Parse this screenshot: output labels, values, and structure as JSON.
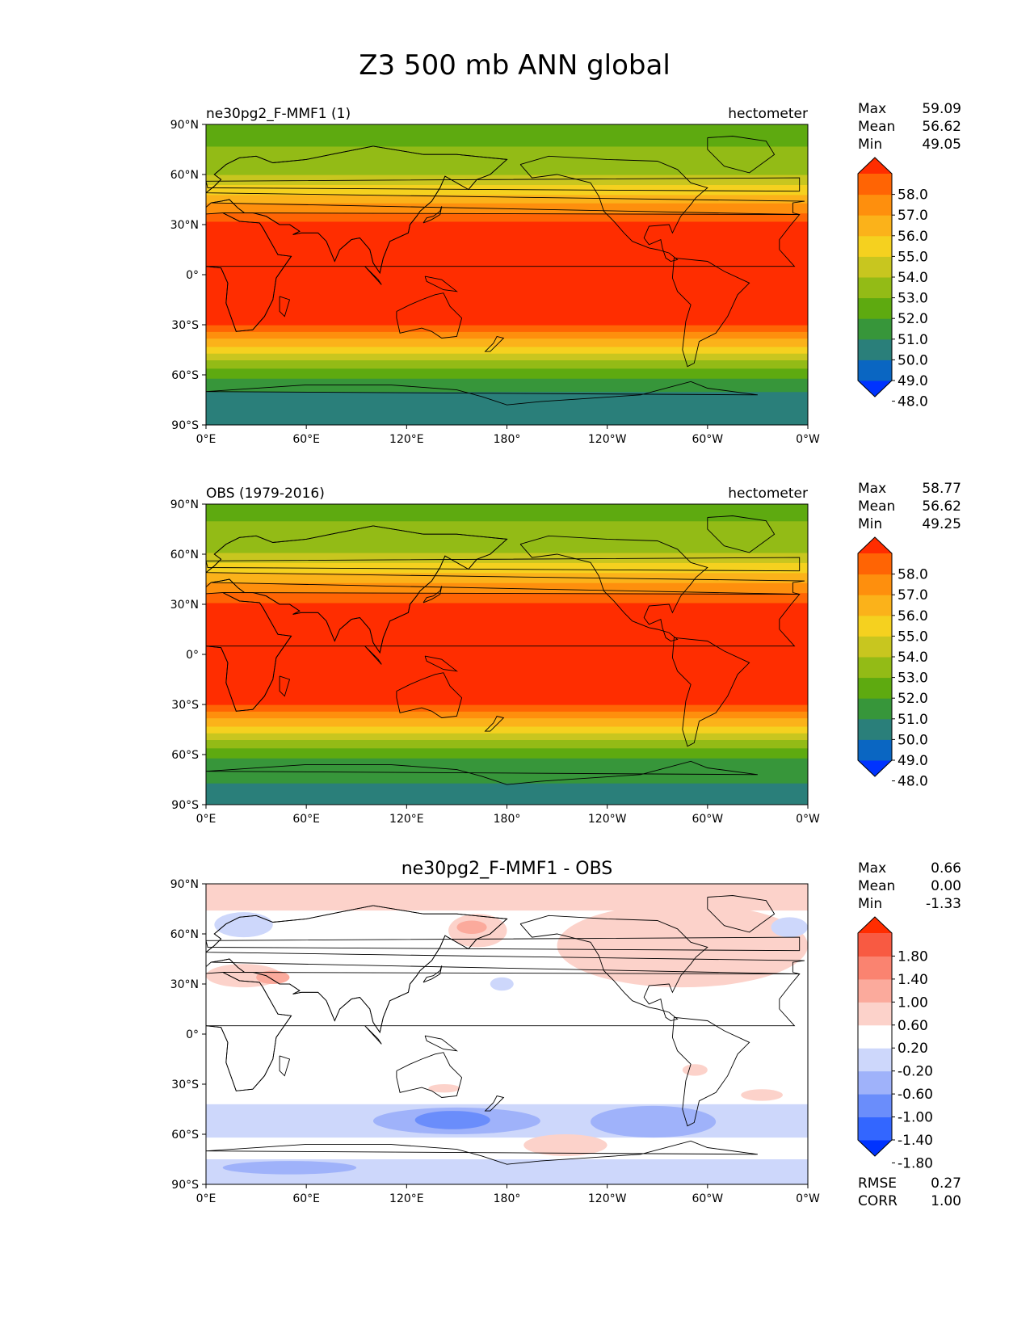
{
  "title": "Z3 500 mb ANN global",
  "lat_ticks": [
    "90°N",
    "60°N",
    "30°N",
    "0°",
    "30°S",
    "60°S",
    "90°S"
  ],
  "lon_ticks": [
    "0°E",
    "60°E",
    "120°E",
    "180°",
    "120°W",
    "60°W",
    "0°W"
  ],
  "stat_labels": {
    "max": "Max",
    "mean": "Mean",
    "min": "Min",
    "rmse": "RMSE",
    "corr": "CORR"
  },
  "colors": {
    "abs_levels": [
      "#0033ff",
      "#0a66c2",
      "#2a7f7a",
      "#37963a",
      "#5eaa10",
      "#93bb16",
      "#c8c61f",
      "#f5d11f",
      "#fbb21a",
      "#fe8f0d",
      "#ff6404",
      "#ff2d00"
    ],
    "diff_levels": [
      "#0033ff",
      "#3366ff",
      "#6a8dfb",
      "#9fb2fa",
      "#cdd7fb",
      "#ffffff",
      "#fcd2ca",
      "#fbaa9c",
      "#fa8370",
      "#f85a42",
      "#ff2d00"
    ]
  },
  "chart_data": [
    {
      "type": "heatmap",
      "title": "ne30pg2_F-MMF1 (1)",
      "units": "hectometer",
      "stats": {
        "max": "59.09",
        "mean": "56.62",
        "min": "49.05"
      },
      "colorbar_ticks": [
        "58.0",
        "57.0",
        "56.0",
        "55.0",
        "54.0",
        "53.0",
        "52.0",
        "51.0",
        "50.0",
        "49.0",
        "48.0"
      ],
      "xlim": [
        0,
        360
      ],
      "ylim": [
        -90,
        90
      ],
      "lat_bands": [
        {
          "lat": [
            -90,
            -70
          ],
          "level": 2
        },
        {
          "lat": [
            -70,
            -62
          ],
          "level": 3
        },
        {
          "lat": [
            -62,
            -56
          ],
          "level": 4
        },
        {
          "lat": [
            -56,
            -51
          ],
          "level": 5
        },
        {
          "lat": [
            -51,
            -47
          ],
          "level": 6
        },
        {
          "lat": [
            -47,
            -43
          ],
          "level": 7
        },
        {
          "lat": [
            -43,
            -38
          ],
          "level": 8
        },
        {
          "lat": [
            -38,
            -34
          ],
          "level": 9
        },
        {
          "lat": [
            -34,
            -30
          ],
          "level": 10
        },
        {
          "lat": [
            -30,
            32
          ],
          "level": 11
        },
        {
          "lat": [
            32,
            37
          ],
          "level": 10
        },
        {
          "lat": [
            37,
            43
          ],
          "level": 9
        },
        {
          "lat": [
            43,
            48
          ],
          "level": 8
        },
        {
          "lat": [
            48,
            54
          ],
          "level": 7
        },
        {
          "lat": [
            54,
            60
          ],
          "level": 6
        },
        {
          "lat": [
            60,
            77
          ],
          "level": 5
        },
        {
          "lat": [
            77,
            90
          ],
          "level": 4
        }
      ]
    },
    {
      "type": "heatmap",
      "title": "OBS (1979-2016)",
      "units": "hectometer",
      "stats": {
        "max": "58.77",
        "mean": "56.62",
        "min": "49.25"
      },
      "colorbar_ticks": [
        "58.0",
        "57.0",
        "56.0",
        "55.0",
        "54.0",
        "53.0",
        "52.0",
        "51.0",
        "50.0",
        "49.0",
        "48.0"
      ],
      "xlim": [
        0,
        360
      ],
      "ylim": [
        -90,
        90
      ],
      "lat_bands": [
        {
          "lat": [
            -90,
            -77
          ],
          "level": 2
        },
        {
          "lat": [
            -77,
            -62
          ],
          "level": 3
        },
        {
          "lat": [
            -62,
            -56
          ],
          "level": 4
        },
        {
          "lat": [
            -56,
            -51
          ],
          "level": 5
        },
        {
          "lat": [
            -51,
            -47
          ],
          "level": 6
        },
        {
          "lat": [
            -47,
            -43
          ],
          "level": 7
        },
        {
          "lat": [
            -43,
            -38
          ],
          "level": 8
        },
        {
          "lat": [
            -38,
            -34
          ],
          "level": 9
        },
        {
          "lat": [
            -34,
            -30
          ],
          "level": 10
        },
        {
          "lat": [
            -30,
            31
          ],
          "level": 11
        },
        {
          "lat": [
            31,
            37
          ],
          "level": 10
        },
        {
          "lat": [
            37,
            43
          ],
          "level": 9
        },
        {
          "lat": [
            43,
            49
          ],
          "level": 8
        },
        {
          "lat": [
            49,
            55
          ],
          "level": 7
        },
        {
          "lat": [
            55,
            61
          ],
          "level": 6
        },
        {
          "lat": [
            61,
            80
          ],
          "level": 5
        },
        {
          "lat": [
            80,
            90
          ],
          "level": 4
        }
      ]
    },
    {
      "type": "heatmap",
      "title": "ne30pg2_F-MMF1 - OBS",
      "units": "",
      "stats": {
        "max": "0.66",
        "mean": "0.00",
        "min": "-1.33"
      },
      "rmse": "0.27",
      "corr": "1.00",
      "colorbar_ticks": [
        "1.80",
        "1.40",
        "1.00",
        "0.60",
        "0.20",
        "-0.20",
        "-0.60",
        "-1.00",
        "-1.40",
        "-1.80"
      ],
      "xlim": [
        0,
        360
      ],
      "ylim": [
        -90,
        90
      ],
      "anomalies": [
        {
          "lon": [
            0,
            360
          ],
          "lat": [
            74,
            90
          ],
          "level": 6
        },
        {
          "lon": [
            145,
            180
          ],
          "lat": [
            52,
            72
          ],
          "level": 6
        },
        {
          "lon": [
            150,
            168
          ],
          "lat": [
            60,
            68
          ],
          "level": 7
        },
        {
          "lon": [
            210,
            360
          ],
          "lat": [
            28,
            78
          ],
          "level": 6
        },
        {
          "lon": [
            250,
            340
          ],
          "lat": [
            40,
            70
          ],
          "level": 6
        },
        {
          "lon": [
            0,
            45
          ],
          "lat": [
            28,
            42
          ],
          "level": 6
        },
        {
          "lon": [
            30,
            50
          ],
          "lat": [
            30,
            38
          ],
          "level": 7
        },
        {
          "lon": [
            5,
            40
          ],
          "lat": [
            58,
            73
          ],
          "level": 4
        },
        {
          "lon": [
            338,
            360
          ],
          "lat": [
            58,
            70
          ],
          "level": 4
        },
        {
          "lon": [
            170,
            184
          ],
          "lat": [
            26,
            34
          ],
          "level": 4
        },
        {
          "lon": [
            0,
            360
          ],
          "lat": [
            -62,
            -42
          ],
          "level": 4
        },
        {
          "lon": [
            100,
            200
          ],
          "lat": [
            -60,
            -44
          ],
          "level": 3
        },
        {
          "lon": [
            125,
            170
          ],
          "lat": [
            -57,
            -46
          ],
          "level": 2
        },
        {
          "lon": [
            230,
            305
          ],
          "lat": [
            -62,
            -43
          ],
          "level": 3
        },
        {
          "lon": [
            0,
            360
          ],
          "lat": [
            -90,
            -75
          ],
          "level": 4
        },
        {
          "lon": [
            10,
            90
          ],
          "lat": [
            -84,
            -76
          ],
          "level": 3
        },
        {
          "lon": [
            190,
            240
          ],
          "lat": [
            -73,
            -60
          ],
          "level": 6
        },
        {
          "lon": [
            320,
            345
          ],
          "lat": [
            -40,
            -33
          ],
          "level": 6
        },
        {
          "lon": [
            133,
            152
          ],
          "lat": [
            -35,
            -30
          ],
          "level": 6
        },
        {
          "lon": [
            285,
            300
          ],
          "lat": [
            -25,
            -18
          ],
          "level": 6
        }
      ]
    }
  ]
}
